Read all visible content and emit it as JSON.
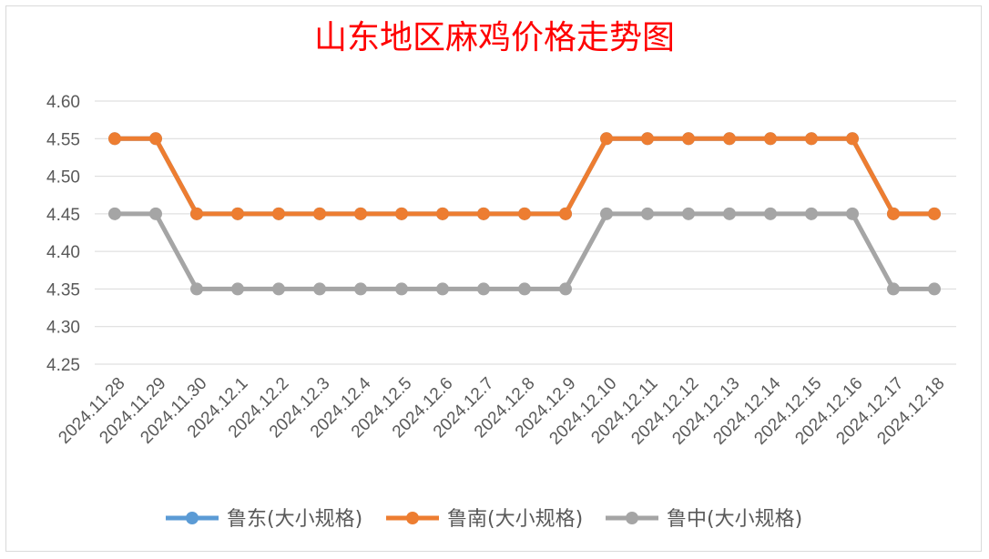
{
  "chart_data": {
    "type": "line",
    "title": "山东地区麻鸡价格走势图",
    "xlabel": "",
    "ylabel": "",
    "categories": [
      "2024.11.28",
      "2024.11.29",
      "2024.11.30",
      "2024.12.1",
      "2024.12.2",
      "2024.12.3",
      "2024.12.4",
      "2024.12.5",
      "2024.12.6",
      "2024.12.7",
      "2024.12.8",
      "2024.12.9",
      "2024.12.10",
      "2024.12.11",
      "2024.12.12",
      "2024.12.13",
      "2024.12.14",
      "2024.12.15",
      "2024.12.16",
      "2024.12.17",
      "2024.12.18"
    ],
    "ylim": [
      4.25,
      4.6
    ],
    "yticks": [
      "4.60",
      "4.55",
      "4.50",
      "4.45",
      "4.40",
      "4.35",
      "4.30",
      "4.25"
    ],
    "grid": true,
    "legend_position": "bottom",
    "series": [
      {
        "name": "鲁东(大小规格)",
        "color": "#5b9bd5",
        "values": [
          4.55,
          4.55,
          4.45,
          4.45,
          4.45,
          4.45,
          4.45,
          4.45,
          4.45,
          4.45,
          4.45,
          4.45,
          4.55,
          4.55,
          4.55,
          4.55,
          4.55,
          4.55,
          4.55,
          4.45,
          4.45
        ]
      },
      {
        "name": "鲁南(大小规格)",
        "color": "#ed7d31",
        "values": [
          4.55,
          4.55,
          4.45,
          4.45,
          4.45,
          4.45,
          4.45,
          4.45,
          4.45,
          4.45,
          4.45,
          4.45,
          4.55,
          4.55,
          4.55,
          4.55,
          4.55,
          4.55,
          4.55,
          4.45,
          4.45
        ]
      },
      {
        "name": "鲁中(大小规格)",
        "color": "#a5a5a5",
        "values": [
          4.45,
          4.45,
          4.35,
          4.35,
          4.35,
          4.35,
          4.35,
          4.35,
          4.35,
          4.35,
          4.35,
          4.35,
          4.45,
          4.45,
          4.45,
          4.45,
          4.45,
          4.45,
          4.45,
          4.35,
          4.35
        ]
      }
    ]
  }
}
